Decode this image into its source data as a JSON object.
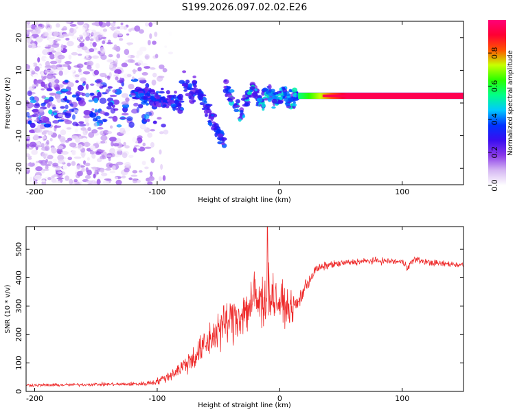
{
  "title": "S199.2026.097.02.02.E26",
  "chart_data": [
    {
      "type": "heatmap",
      "name": "spectrogram",
      "xlabel": "Height of straight line (km)",
      "ylabel": "Frequency (Hz)",
      "xlim": [
        -207,
        150
      ],
      "ylim": [
        -25,
        25
      ],
      "xticks": [
        -200,
        -100,
        0,
        100
      ],
      "yticks": [
        20,
        10,
        0,
        -10,
        -20
      ],
      "colorbar": {
        "label": "Normalized spectral amplitude",
        "range": [
          0,
          1
        ],
        "ticks": [
          0.0,
          0.2,
          0.4,
          0.6,
          0.8
        ],
        "colors": [
          "#ffffff",
          "#d6b8f3",
          "#8a3ae9",
          "#3a0df0",
          "#0033ff",
          "#00c9ff",
          "#00ff88",
          "#29ff00",
          "#c8ff00",
          "#ff5500",
          "#ff0033",
          "#ff0078"
        ]
      },
      "carrier": {
        "start_km": 15,
        "end_km": 150,
        "frequency_hz": 2.2,
        "amplitude": 0.95
      }
    },
    {
      "type": "line",
      "name": "snr",
      "xlabel": "Height of straight line (km)",
      "ylabel": "SNR (10 * v/v)",
      "xlim": [
        -207,
        150
      ],
      "ylim": [
        0,
        580
      ],
      "xticks": [
        -200,
        -100,
        0,
        100
      ],
      "yticks": [
        0,
        100,
        200,
        300,
        400,
        500
      ],
      "color": "#ee2a2a",
      "series": [
        {
          "name": "SNR",
          "x": [
            -207,
            -190,
            -170,
            -150,
            -130,
            -110,
            -100,
            -90,
            -80,
            -70,
            -60,
            -50,
            -40,
            -30,
            -25,
            -20,
            -15,
            -10,
            -5,
            0,
            5,
            10,
            15,
            20,
            25,
            30,
            40,
            50,
            60,
            70,
            80,
            90,
            100,
            105,
            110,
            120,
            130,
            140,
            150
          ],
          "values": [
            22,
            22,
            23,
            25,
            25,
            27,
            35,
            55,
            85,
            120,
            165,
            220,
            250,
            275,
            300,
            330,
            300,
            360,
            330,
            310,
            300,
            290,
            310,
            360,
            400,
            430,
            445,
            450,
            455,
            458,
            460,
            458,
            455,
            440,
            465,
            455,
            450,
            448,
            445
          ],
          "spread": [
            8,
            8,
            8,
            8,
            9,
            12,
            18,
            28,
            45,
            70,
            90,
            110,
            120,
            130,
            150,
            160,
            170,
            150,
            130,
            110,
            90,
            70,
            60,
            45,
            35,
            25,
            20,
            18,
            17,
            17,
            17,
            17,
            17,
            25,
            18,
            17,
            17,
            17,
            17
          ],
          "spike": {
            "x": -10,
            "value": 580
          }
        }
      ]
    }
  ]
}
